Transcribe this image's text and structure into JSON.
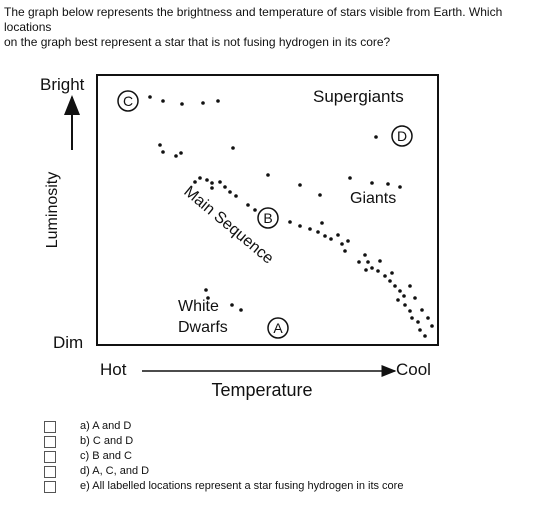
{
  "question": {
    "lines": [
      "The graph below represents the brightness and temperature of stars visible from Earth. Which locations",
      "on the graph best represent a star that is not fusing hydrogen in its core?"
    ]
  },
  "diagram": {
    "y_top": "Bright",
    "y_bottom": "Dim",
    "y_axis": "Luminosity",
    "x_left": "Hot",
    "x_right": "Cool",
    "x_axis": "Temperature",
    "regions": [
      "Supergiants",
      "Giants",
      "Main Sequence"
    ],
    "white_dwarfs": [
      "White",
      "Dwarfs"
    ],
    "points": [
      "C",
      "B",
      "A",
      "D"
    ]
  },
  "options": [
    "a) A and D",
    "b) C and D",
    "c) B and C",
    "d) A, C, and D",
    "e) All labelled locations represent a star fusing hydrogen in its core"
  ]
}
